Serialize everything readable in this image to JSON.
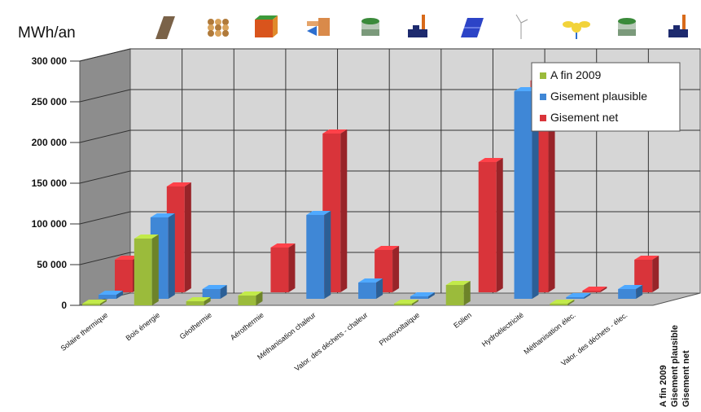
{
  "chart_data": {
    "type": "bar",
    "unit_label": "MWh/an",
    "ylim": [
      0,
      300000
    ],
    "y_ticks": [
      "300 000",
      "250 000",
      "200 000",
      "150 000",
      "100 000",
      "50 000",
      "0"
    ],
    "categories": [
      "Solaire thermique",
      "Bois énergie",
      "Géothermie",
      "Aérothermie",
      "Méthanisation chaleur",
      "Valor. des déchets - chaleur",
      "Photovoltaïque",
      "Eolien",
      "Hydroélectricité",
      "Méthanisation élec.",
      "Valor. des déchets - élec."
    ],
    "category_icons": [
      "solar-thermal-panel-icon",
      "wood-chips-icon",
      "geothermal-ground-icon",
      "heat-pump-icon",
      "biogas-digester-icon",
      "waste-incinerator-icon",
      "photovoltaic-panel-icon",
      "wind-turbine-icon",
      "hydro-turbine-icon",
      "biogas-digester-icon",
      "waste-incinerator-icon"
    ],
    "series": [
      {
        "name": "A fin 2009",
        "color": "#9bbb3b",
        "values": [
          1000,
          82000,
          5000,
          12000,
          0,
          0,
          500,
          25000,
          0,
          500,
          0
        ]
      },
      {
        "name": "Gisement plausible",
        "color": "#3f87d6",
        "values": [
          5000,
          100000,
          12000,
          0,
          103000,
          20000,
          3000,
          0,
          255000,
          2000,
          12000
        ]
      },
      {
        "name": "Gisement net",
        "color": "#d9343a",
        "values": [
          40000,
          130000,
          0,
          55000,
          195000,
          52000,
          0,
          160000,
          260000,
          2000,
          40000
        ]
      }
    ],
    "legend_position": "top-right",
    "grid": true,
    "depth_axis_labels": [
      "A fin 2009",
      "Gisement plausible",
      "Gisement net"
    ]
  }
}
